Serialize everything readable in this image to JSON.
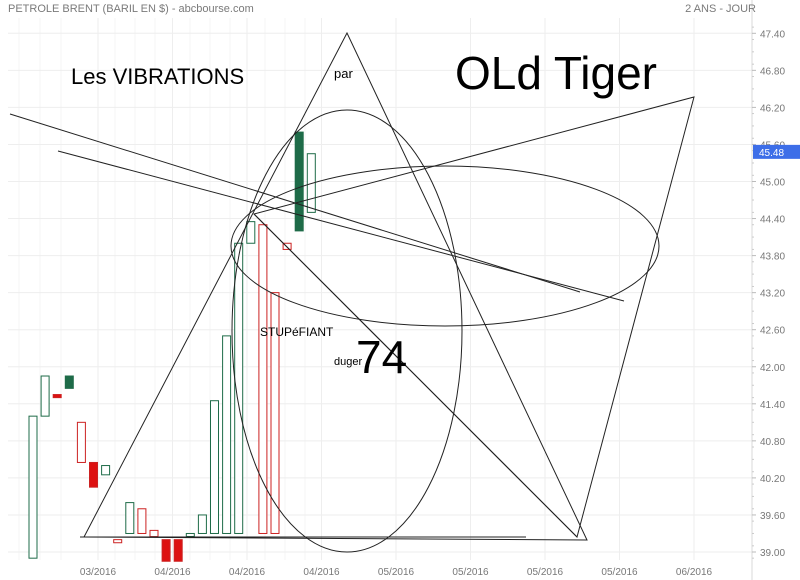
{
  "header": {
    "title": "PETROLE BRENT (BARIL EN $) - abcbourse.com",
    "period": "2 ANS - JOUR"
  },
  "annotations": {
    "vibrations": "Les VIBRATIONS",
    "par": "par",
    "old_tiger": "OLd Tiger",
    "stupefiant": "STUPéFIANT",
    "duger": "duger",
    "number": "74"
  },
  "chart_data": {
    "type": "candlestick",
    "title": "PETROLE BRENT (BARIL EN $)",
    "ylim": [
      38.9,
      47.6
    ],
    "y_ticks": [
      39.0,
      39.6,
      40.2,
      40.8,
      41.4,
      42.0,
      42.6,
      43.2,
      43.8,
      44.4,
      45.0,
      45.6,
      46.2,
      46.8,
      47.4
    ],
    "y_tick_labels": [
      "39.00",
      "39.60",
      "40.20",
      "40.80",
      "41.40",
      "42.00",
      "42.60",
      "43.20",
      "43.80",
      "44.40",
      "45.00",
      "45.60",
      "46.20",
      "46.80",
      "47.40"
    ],
    "x_labels": [
      "03/2016",
      "04/2016",
      "04/2016",
      "04/2016",
      "05/2016",
      "05/2016",
      "05/2016",
      "05/2016",
      "06/2016"
    ],
    "last_price": "45.48",
    "candles": [
      {
        "open": 38.9,
        "close": 41.2
      },
      {
        "open": 41.2,
        "close": 41.85
      },
      {
        "open": 41.55,
        "close": 41.5
      },
      {
        "open": 41.65,
        "close": 41.85
      },
      {
        "open": 41.1,
        "close": 40.45
      },
      {
        "open": 40.45,
        "close": 40.05
      },
      {
        "open": 40.25,
        "close": 40.4
      },
      {
        "open": 39.2,
        "close": 39.15
      },
      {
        "open": 39.3,
        "close": 39.8
      },
      {
        "open": 39.7,
        "close": 39.3
      },
      {
        "open": 39.35,
        "close": 39.25
      },
      {
        "open": 39.2,
        "close": 38.85
      },
      {
        "open": 39.2,
        "close": 38.85
      },
      {
        "open": 39.3,
        "close": 39.3
      },
      {
        "open": 39.3,
        "close": 39.6
      },
      {
        "open": 39.3,
        "close": 41.45
      },
      {
        "open": 39.3,
        "close": 42.5
      },
      {
        "open": 39.3,
        "close": 44.0
      },
      {
        "open": 44.0,
        "close": 44.35
      },
      {
        "open": 44.3,
        "close": 39.3
      },
      {
        "open": 43.2,
        "close": 39.3
      },
      {
        "open": 44.0,
        "close": 43.9
      },
      {
        "open": 44.2,
        "close": 45.8
      },
      {
        "open": 44.5,
        "close": 45.45
      }
    ],
    "colors": {
      "up": "#1e6b48",
      "down_solid": "#dd1111",
      "down_hollow": "#cc2222",
      "grid": "#eeeeee",
      "axis_text": "#777777",
      "price_badge": "#3d6ee8",
      "drawing": "#222222"
    }
  }
}
